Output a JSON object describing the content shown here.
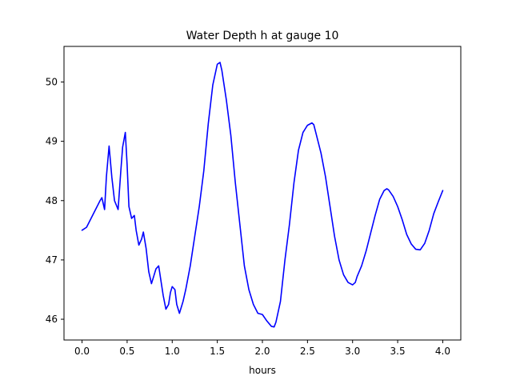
{
  "chart_data": {
    "type": "line",
    "title": "Water Depth h at gauge 10",
    "xlabel": "hours",
    "ylabel": "",
    "xlim": [
      -0.2,
      4.2
    ],
    "ylim": [
      45.65,
      50.6
    ],
    "xticks": [
      0.0,
      0.5,
      1.0,
      1.5,
      2.0,
      2.5,
      3.0,
      3.5,
      4.0
    ],
    "xtick_labels": [
      "0.0",
      "0.5",
      "1.0",
      "1.5",
      "2.0",
      "2.5",
      "3.0",
      "3.5",
      "4.0"
    ],
    "yticks": [
      46,
      47,
      48,
      49,
      50
    ],
    "ytick_labels": [
      "46",
      "47",
      "48",
      "49",
      "50"
    ],
    "grid": false,
    "series": [
      {
        "color": "#0000ff",
        "x": [
          0.0,
          0.05,
          0.1,
          0.15,
          0.2,
          0.22,
          0.25,
          0.27,
          0.3,
          0.33,
          0.36,
          0.4,
          0.43,
          0.45,
          0.48,
          0.5,
          0.52,
          0.55,
          0.58,
          0.6,
          0.63,
          0.66,
          0.68,
          0.71,
          0.74,
          0.77,
          0.8,
          0.82,
          0.85,
          0.88,
          0.9,
          0.93,
          0.96,
          0.98,
          1.0,
          1.03,
          1.05,
          1.08,
          1.12,
          1.15,
          1.2,
          1.25,
          1.3,
          1.35,
          1.4,
          1.45,
          1.5,
          1.53,
          1.55,
          1.6,
          1.65,
          1.7,
          1.75,
          1.8,
          1.85,
          1.9,
          1.95,
          2.0,
          2.05,
          2.1,
          2.13,
          2.15,
          2.2,
          2.25,
          2.3,
          2.35,
          2.4,
          2.45,
          2.5,
          2.55,
          2.57,
          2.6,
          2.65,
          2.7,
          2.75,
          2.8,
          2.85,
          2.9,
          2.95,
          3.0,
          3.03,
          3.05,
          3.1,
          3.15,
          3.2,
          3.25,
          3.3,
          3.35,
          3.38,
          3.4,
          3.45,
          3.5,
          3.55,
          3.6,
          3.65,
          3.7,
          3.75,
          3.8,
          3.85,
          3.9,
          3.95,
          4.0
        ],
        "y": [
          47.5,
          47.55,
          47.7,
          47.85,
          48.0,
          48.05,
          47.85,
          48.4,
          48.92,
          48.4,
          48.0,
          47.85,
          48.5,
          48.9,
          49.15,
          48.6,
          47.9,
          47.7,
          47.75,
          47.5,
          47.25,
          47.35,
          47.47,
          47.2,
          46.8,
          46.6,
          46.75,
          46.85,
          46.9,
          46.6,
          46.4,
          46.17,
          46.25,
          46.45,
          46.55,
          46.5,
          46.25,
          46.1,
          46.3,
          46.5,
          46.9,
          47.4,
          47.9,
          48.5,
          49.3,
          49.95,
          50.3,
          50.33,
          50.2,
          49.7,
          49.1,
          48.3,
          47.6,
          46.9,
          46.5,
          46.25,
          46.1,
          46.08,
          45.97,
          45.88,
          45.87,
          45.95,
          46.3,
          47.0,
          47.6,
          48.3,
          48.85,
          49.15,
          49.27,
          49.31,
          49.28,
          49.1,
          48.8,
          48.4,
          47.9,
          47.4,
          47.0,
          46.75,
          46.62,
          46.58,
          46.62,
          46.72,
          46.9,
          47.15,
          47.45,
          47.75,
          48.02,
          48.17,
          48.2,
          48.18,
          48.07,
          47.9,
          47.68,
          47.43,
          47.27,
          47.18,
          47.17,
          47.28,
          47.5,
          47.78,
          47.98,
          48.17
        ]
      }
    ]
  }
}
